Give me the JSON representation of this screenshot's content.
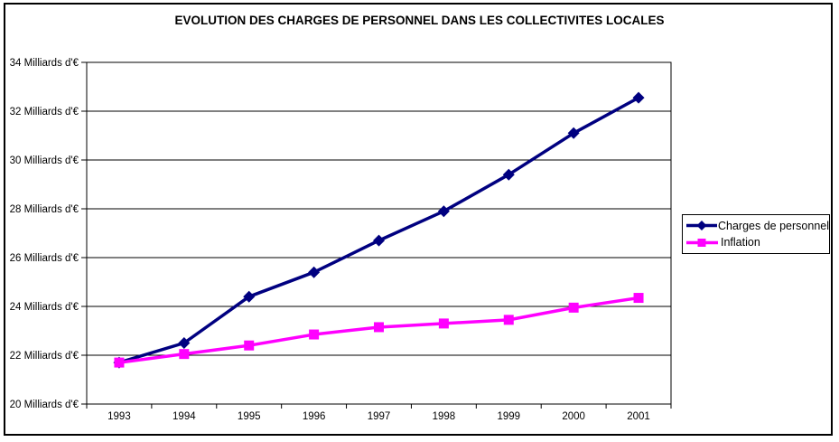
{
  "window": {
    "background_color": "#FFFFFF",
    "frame_border_color": "#000000"
  },
  "chart_data": {
    "type": "line",
    "title": "EVOLUTION DES CHARGES DE PERSONNEL DANS LES COLLECTIVITES LOCALES",
    "categories": [
      "1993",
      "1994",
      "1995",
      "1996",
      "1997",
      "1998",
      "1999",
      "2000",
      "2001"
    ],
    "series": [
      {
        "name": "Charges de personnel",
        "color": "#000080",
        "marker": "diamond",
        "values": [
          21.7,
          22.5,
          24.4,
          25.4,
          26.7,
          27.9,
          29.4,
          31.1,
          32.55
        ]
      },
      {
        "name": "Inflation",
        "color": "#FF00FF",
        "marker": "square",
        "values": [
          21.7,
          22.05,
          22.4,
          22.85,
          23.15,
          23.3,
          23.45,
          23.95,
          24.35
        ]
      }
    ],
    "y_axis": {
      "min": 20,
      "max": 34,
      "step": 2,
      "tick_labels": [
        "20 Milliards d'€",
        "22 Milliards d'€",
        "24 Milliards d'€",
        "26 Milliards d'€",
        "28 Milliards d'€",
        "30 Milliards d'€",
        "32 Milliards d'€",
        "34 Milliards d'€"
      ]
    },
    "grid": true,
    "legend_position": "right",
    "axis_color": "#000000",
    "plot_background": "#FFFFFF"
  }
}
